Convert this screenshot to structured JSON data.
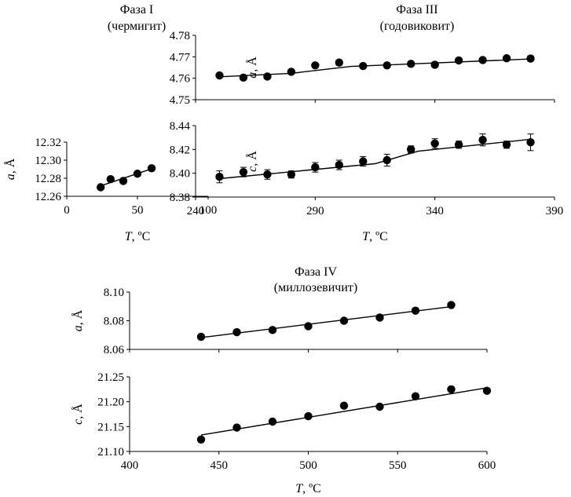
{
  "chart_data": [
    {
      "type": "scatter",
      "phase": "Фаза I",
      "mineral": "(чермигит)",
      "xlabel": "T, ºC",
      "ylabel": "a, Å",
      "xlim": [
        0,
        100
      ],
      "ylim": [
        12.26,
        12.32
      ],
      "xticks": [
        "0",
        "50",
        "100"
      ],
      "yticks": [
        "12.26",
        "12.28",
        "12.30",
        "12.32"
      ],
      "series": [
        {
          "x": [
            24,
            31,
            40,
            50,
            60
          ],
          "y": [
            12.27,
            12.279,
            12.277,
            12.285,
            12.291
          ]
        }
      ],
      "fit": {
        "x": [
          22,
          62
        ],
        "y": [
          12.2705,
          12.2915
        ]
      }
    },
    {
      "type": "scatter",
      "phase": "Фаза III",
      "mineral": "(годовиковит)",
      "xlabel": "T, ºC",
      "ylabel": "a, Å",
      "xlim": [
        240,
        390
      ],
      "ylim": [
        4.75,
        4.78
      ],
      "yticks": [
        "4.75",
        "4.76",
        "4.77",
        "4.78"
      ],
      "series": [
        {
          "x": [
            250,
            260,
            270,
            280,
            290,
            300,
            310,
            320,
            330,
            340,
            350,
            360,
            370,
            380
          ],
          "y": [
            4.7613,
            4.7603,
            4.7608,
            4.763,
            4.766,
            4.7673,
            4.7657,
            4.766,
            4.7667,
            4.7663,
            4.7683,
            4.7685,
            4.7693,
            4.7692
          ],
          "err": [
            0.001,
            0.001,
            0.001,
            0.0008,
            0.001,
            0.0012,
            0.001,
            0.0008,
            0.001,
            0.001,
            0.0008,
            0.0008,
            0.0008,
            0.0012
          ]
        }
      ],
      "fit": {
        "x": [
          250,
          280,
          305,
          380
        ],
        "y": [
          4.7607,
          4.7623,
          4.7655,
          4.769
        ]
      }
    },
    {
      "type": "scatter",
      "phase": "Фаза III",
      "xlabel": "T, ºC",
      "ylabel": "c, Å",
      "xlim": [
        240,
        390
      ],
      "ylim": [
        8.38,
        8.44
      ],
      "xticks": [
        "240",
        "290",
        "340",
        "390"
      ],
      "yticks": [
        "8.38",
        "8.40",
        "8.42",
        "8.44"
      ],
      "series": [
        {
          "x": [
            250,
            260,
            270,
            280,
            290,
            300,
            310,
            320,
            330,
            340,
            350,
            360,
            370,
            380
          ],
          "y": [
            8.397,
            8.401,
            8.399,
            8.399,
            8.405,
            8.407,
            8.41,
            8.411,
            8.42,
            8.425,
            8.424,
            8.428,
            8.424,
            8.426
          ],
          "err": [
            0.005,
            0.004,
            0.004,
            0.003,
            0.004,
            0.004,
            0.004,
            0.005,
            0.003,
            0.004,
            0.003,
            0.005,
            0.003,
            0.007
          ]
        }
      ],
      "fit": {
        "x": [
          250,
          315,
          333,
          380
        ],
        "y": [
          8.3955,
          8.408,
          8.4185,
          8.4285
        ]
      }
    },
    {
      "type": "scatter",
      "phase": "Фаза IV",
      "mineral": "(миллозевичит)",
      "xlabel": "T, ºC",
      "ylabel": "a, Å",
      "xlim": [
        400,
        600
      ],
      "ylim": [
        8.06,
        8.1
      ],
      "yticks": [
        "8.06",
        "8.08",
        "8.10"
      ],
      "series": [
        {
          "x": [
            440,
            460,
            480,
            500,
            520,
            540,
            560,
            580
          ],
          "y": [
            8.0688,
            8.072,
            8.0735,
            8.0762,
            8.08,
            8.0822,
            8.087,
            8.091
          ]
        }
      ],
      "fit": {
        "x": [
          440,
          580
        ],
        "y": [
          8.0683,
          8.0898
        ]
      }
    },
    {
      "type": "scatter",
      "phase": "Фаза IV",
      "xlabel": "T, ºC",
      "ylabel": "c, Å",
      "xlim": [
        400,
        600
      ],
      "ylim": [
        21.1,
        21.25
      ],
      "xticks": [
        "400",
        "450",
        "500",
        "550",
        "600"
      ],
      "yticks": [
        "21.10",
        "21.15",
        "21.20",
        "21.25"
      ],
      "series": [
        {
          "x": [
            440,
            460,
            480,
            500,
            520,
            540,
            560,
            580,
            600
          ],
          "y": [
            21.124,
            21.148,
            21.16,
            21.171,
            21.192,
            21.19,
            21.211,
            21.225,
            21.222
          ]
        }
      ],
      "fit": {
        "x": [
          440,
          600
        ],
        "y": [
          21.133,
          21.228
        ]
      }
    }
  ]
}
